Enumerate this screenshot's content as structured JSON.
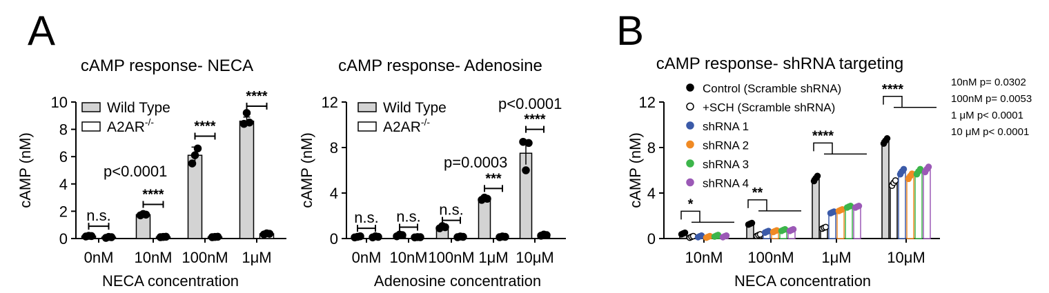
{
  "panel_labels": [
    "A",
    "B"
  ],
  "chart_data": [
    {
      "type": "bar",
      "title": "cAMP response- NECA",
      "xlabel": "NECA concentration",
      "ylabel": "cAMP (nM)",
      "ylim": [
        0,
        10
      ],
      "yticks": [
        "0",
        "2",
        "4",
        "6",
        "8",
        "10"
      ],
      "categories": [
        "0nM",
        "10nM",
        "100nM",
        "1μM"
      ],
      "legend": {
        "position": "top-left",
        "entries": [
          "Wild Type",
          "A2AR-/-"
        ]
      },
      "series": [
        {
          "name": "Wild Type",
          "values": [
            0.18,
            1.75,
            6.1,
            8.6
          ],
          "errors": [
            0.05,
            0.1,
            0.6,
            0.3
          ],
          "points": [
            [
              0.15,
              0.2,
              0.18
            ],
            [
              1.7,
              1.8,
              1.75
            ],
            [
              5.5,
              6.1,
              6.6
            ],
            [
              8.4,
              9.2,
              8.5
            ]
          ],
          "color": "#d3d3d3"
        },
        {
          "name": "A2AR-/-",
          "values": [
            0.1,
            0.12,
            0.12,
            0.35
          ],
          "errors": [
            0.03,
            0.03,
            0.03,
            0.05
          ],
          "points": [
            [
              0.05,
              0.12,
              0.1
            ],
            [
              0.1,
              0.12,
              0.13
            ],
            [
              0.1,
              0.12,
              0.13
            ],
            [
              0.3,
              0.38,
              0.35
            ]
          ],
          "color": "#ffffff"
        }
      ],
      "annotations": [
        {
          "label": "n.s.",
          "category": 0,
          "top": 0.9
        },
        {
          "label": "****",
          "category": 1,
          "top": 2.5
        },
        {
          "label": "****",
          "category": 2,
          "top": 7.5
        },
        {
          "label": "****",
          "category": 3,
          "top": 9.7
        }
      ],
      "pvalue_text": "p<0.0001"
    },
    {
      "type": "bar",
      "title": "cAMP response- Adenosine",
      "xlabel": "Adenosine concentration",
      "ylabel": "cAMP (nM)",
      "ylim": [
        0,
        12
      ],
      "yticks": [
        "0",
        "4",
        "8",
        "12"
      ],
      "categories": [
        "0nM",
        "10nM",
        "100nM",
        "1μM",
        "10μM"
      ],
      "legend": {
        "position": "top-left",
        "entries": [
          "Wild Type",
          "A2AR-/-"
        ]
      },
      "series": [
        {
          "name": "Wild Type",
          "values": [
            0.15,
            0.3,
            1.0,
            3.5,
            7.5
          ],
          "errors": [
            0.05,
            0.1,
            0.15,
            0.15,
            1.0
          ],
          "points": [
            [
              0.1,
              0.15,
              0.2
            ],
            [
              0.2,
              0.35,
              0.3
            ],
            [
              0.9,
              1.1,
              1.0
            ],
            [
              3.4,
              3.6,
              3.5
            ],
            [
              8.5,
              6.0,
              8.4
            ]
          ],
          "color": "#d3d3d3"
        },
        {
          "name": "A2AR-/-",
          "values": [
            0.15,
            0.12,
            0.15,
            0.15,
            0.3
          ],
          "errors": [
            0.03,
            0.03,
            0.03,
            0.03,
            0.05
          ],
          "points": [
            [
              0.1,
              0.2,
              0.15
            ],
            [
              0.1,
              0.13,
              0.12
            ],
            [
              0.12,
              0.18,
              0.15
            ],
            [
              0.12,
              0.18,
              0.15
            ],
            [
              0.25,
              0.35,
              0.3
            ]
          ],
          "color": "#ffffff"
        }
      ],
      "annotations": [
        {
          "label": "n.s.",
          "category": 0,
          "top": 0.9
        },
        {
          "label": "n.s.",
          "category": 1,
          "top": 1.0
        },
        {
          "label": "n.s.",
          "category": 2,
          "top": 1.6
        },
        {
          "label": "***",
          "category": 3,
          "top": 4.4
        },
        {
          "label": "****",
          "category": 4,
          "top": 9.6
        }
      ],
      "pvalue_texts": [
        "p=0.0003",
        "p<0.0001"
      ]
    },
    {
      "type": "bar",
      "title": "cAMP response- shRNA targeting",
      "xlabel": "NECA concentration",
      "ylabel": "cAMP (nM)",
      "ylim": [
        0,
        12
      ],
      "yticks": [
        "0",
        "4",
        "8",
        "12"
      ],
      "categories": [
        "10nM",
        "100nM",
        "1μM",
        "10μM"
      ],
      "legend": {
        "position": "top-left",
        "entries": [
          "Control (Scramble shRNA)",
          "+SCH (Scramble shRNA)",
          "shRNA 1",
          "shRNA 2",
          "shRNA 3",
          "shRNA 4"
        ]
      },
      "series": [
        {
          "name": "Control (Scramble shRNA)",
          "values": [
            0.45,
            1.3,
            5.3,
            8.6
          ],
          "color": "#000000",
          "fill": "#d3d3d3"
        },
        {
          "name": "+SCH (Scramble shRNA)",
          "values": [
            0.15,
            0.3,
            0.95,
            4.9
          ],
          "color": "#000000",
          "fill": "#ffffff"
        },
        {
          "name": "shRNA 1",
          "values": [
            0.2,
            0.6,
            2.3,
            5.9
          ],
          "color": "#3b5aa8",
          "fill": "#ffffff"
        },
        {
          "name": "shRNA 2",
          "values": [
            0.15,
            0.65,
            2.5,
            5.5
          ],
          "color": "#f08a24",
          "fill": "#ffffff"
        },
        {
          "name": "shRNA 3",
          "values": [
            0.25,
            0.75,
            2.8,
            5.9
          ],
          "color": "#3cb54a",
          "fill": "#ffffff"
        },
        {
          "name": "shRNA 4",
          "values": [
            0.2,
            0.75,
            2.8,
            6.1
          ],
          "color": "#9b59b6",
          "fill": "#ffffff"
        }
      ],
      "annotations": [
        {
          "label": "*",
          "category": 0,
          "top": 2.4
        },
        {
          "label": "**",
          "category": 1,
          "top": 3.4
        },
        {
          "label": "****",
          "category": 2,
          "top": 8.4
        },
        {
          "label": "****",
          "category": 3,
          "top": 12.5
        }
      ],
      "pvalue_notes": [
        "10nM p= 0.0302",
        "100nM p= 0.0053",
        "1 μM p< 0.0001",
        "10 μM p< 0.0001"
      ]
    }
  ]
}
